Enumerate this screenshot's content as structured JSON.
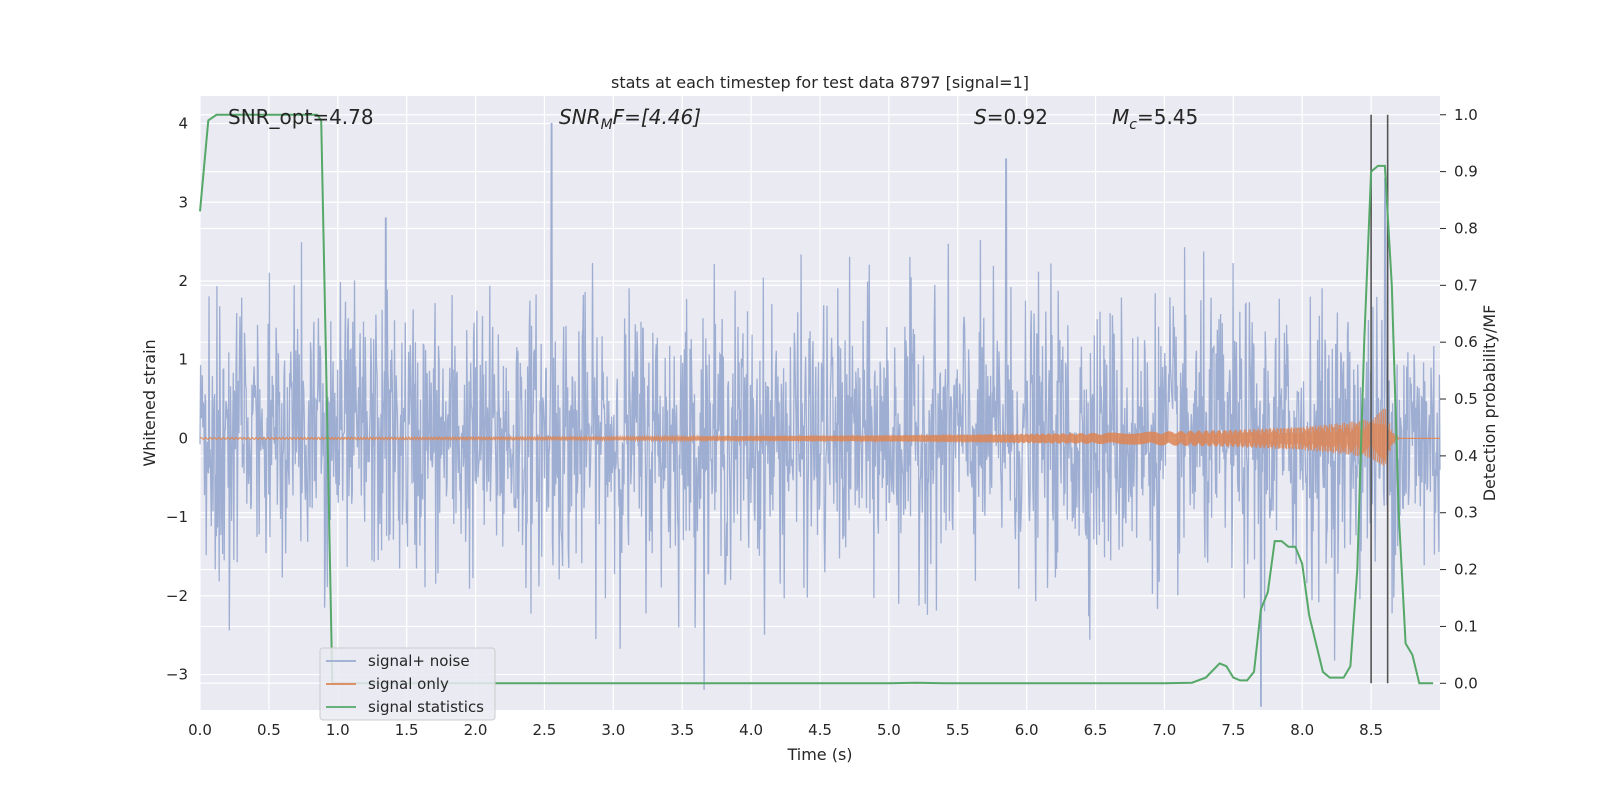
{
  "chart_data": {
    "type": "line",
    "title": "stats at each timestep for test data 8797 [signal=1]",
    "xlabel": "Time (s)",
    "ylabel_left": "Whitened strain",
    "ylabel_right": "Detection probability/MF",
    "xlim": [
      0.0,
      9.0
    ],
    "ylim_left": [
      -3.45,
      4.35
    ],
    "ylim_right": [
      -0.047,
      1.033
    ],
    "x_ticks": [
      "0.0",
      "0.5",
      "1.0",
      "1.5",
      "2.0",
      "2.5",
      "3.0",
      "3.5",
      "4.0",
      "4.5",
      "5.0",
      "5.5",
      "6.0",
      "6.5",
      "7.0",
      "7.5",
      "8.0",
      "8.5"
    ],
    "y_ticks_left": [
      "−3",
      "−2",
      "−1",
      "0",
      "1",
      "2",
      "3",
      "4"
    ],
    "y_ticks_right": [
      "0.0",
      "0.1",
      "0.2",
      "0.3",
      "0.4",
      "0.5",
      "0.6",
      "0.7",
      "0.8",
      "0.9",
      "1.0"
    ],
    "grid": true,
    "legend_position": "lower-left",
    "annotations": {
      "snr_opt": "SNR_opt=4.78",
      "snr_mf_sym": "SNR",
      "snr_mf_sub": "M",
      "snr_mf_rest": "F=[4.46]",
      "s_sym": "S",
      "s_rest": "=0.92",
      "mc_sym": "M",
      "mc_sub": "c",
      "mc_rest": "=5.45"
    },
    "vertical_lines_x": [
      8.5,
      8.62
    ],
    "series": [
      {
        "name": "signal+ noise",
        "color": "#9aabd0",
        "axis": "left",
        "description_values": "whitened noise, std ~1, spikes to +4.0 at t=2.55 and +3.55 at t=5.85",
        "peaks": [
          [
            2.55,
            4.0
          ],
          [
            5.85,
            3.55
          ],
          [
            1.35,
            2.8
          ],
          [
            7.7,
            -3.4
          ],
          [
            8.6,
            3.3
          ]
        ]
      },
      {
        "name": "signal only",
        "color": "#dd8452",
        "axis": "left",
        "envelope": [
          [
            0.0,
            0.01
          ],
          [
            3.0,
            0.02
          ],
          [
            5.0,
            0.04
          ],
          [
            6.5,
            0.07
          ],
          [
            7.5,
            0.11
          ],
          [
            8.0,
            0.15
          ],
          [
            8.3,
            0.2
          ],
          [
            8.5,
            0.25
          ],
          [
            8.6,
            0.4
          ],
          [
            8.65,
            0.1
          ],
          [
            8.7,
            0.0
          ],
          [
            9.0,
            0.0
          ]
        ]
      },
      {
        "name": "signal statistics",
        "color": "#55a868",
        "axis": "right",
        "x": [
          0.0,
          0.06,
          0.12,
          0.5,
          0.85,
          0.88,
          0.92,
          0.96,
          1.1,
          5.0,
          5.2,
          5.4,
          7.0,
          7.2,
          7.3,
          7.4,
          7.45,
          7.5,
          7.55,
          7.6,
          7.65,
          7.7,
          7.75,
          7.8,
          7.85,
          7.9,
          7.95,
          8.0,
          8.05,
          8.1,
          8.15,
          8.2,
          8.25,
          8.3,
          8.35,
          8.4,
          8.45,
          8.5,
          8.55,
          8.6,
          8.65,
          8.7,
          8.75,
          8.8,
          8.85,
          8.9,
          8.95
        ],
        "values": [
          0.83,
          0.99,
          1.0,
          1.0,
          1.0,
          0.99,
          0.5,
          0.0,
          0.0,
          0.0,
          0.001,
          0.0,
          0.0,
          0.001,
          0.01,
          0.035,
          0.03,
          0.01,
          0.005,
          0.005,
          0.02,
          0.13,
          0.16,
          0.25,
          0.25,
          0.24,
          0.24,
          0.21,
          0.12,
          0.07,
          0.02,
          0.01,
          0.01,
          0.01,
          0.03,
          0.2,
          0.6,
          0.9,
          0.91,
          0.91,
          0.7,
          0.3,
          0.07,
          0.05,
          0.0,
          0.0,
          0.0
        ]
      }
    ]
  }
}
